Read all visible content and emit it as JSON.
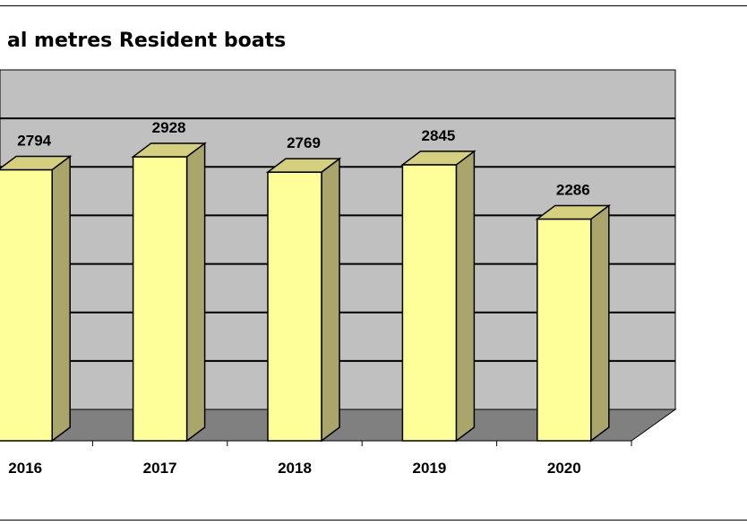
{
  "chart_data": {
    "type": "bar",
    "title": "al metres Resident boats",
    "categories": [
      "2016",
      "2017",
      "2018",
      "2019",
      "2020"
    ],
    "values": [
      2794,
      2928,
      2769,
      2845,
      2286
    ],
    "data_labels": [
      "2794",
      "2928",
      "2769",
      "2845",
      "2286"
    ],
    "xlabel": "",
    "ylabel": "",
    "ylim": [
      0,
      3500
    ],
    "grid": true,
    "legend": "none",
    "colors": {
      "bar_front": "#ffff99",
      "bar_side": "#aaa56a",
      "bar_top": "#d4d07f",
      "wall": "#c0c0c0",
      "floor": "#808080",
      "gridline": "#000000"
    }
  }
}
